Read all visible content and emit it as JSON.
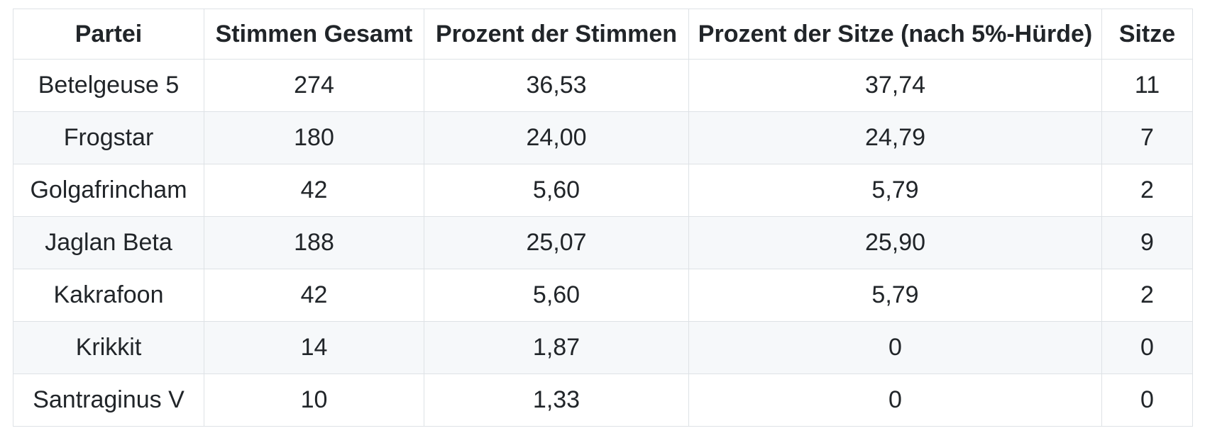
{
  "chart_data": {
    "type": "table",
    "columns": [
      "Partei",
      "Stimmen Gesamt",
      "Prozent der Stimmen",
      "Prozent der Sitze (nach 5%-Hürde)",
      "Sitze"
    ],
    "rows": [
      [
        "Betelgeuse 5",
        "274",
        "36,53",
        "37,74",
        "11"
      ],
      [
        "Frogstar",
        "180",
        "24,00",
        "24,79",
        "7"
      ],
      [
        "Golgafrincham",
        "42",
        "5,60",
        "5,79",
        "2"
      ],
      [
        "Jaglan Beta",
        "188",
        "25,07",
        "25,90",
        "9"
      ],
      [
        "Kakrafoon",
        "42",
        "5,60",
        "5,79",
        "2"
      ],
      [
        "Krikkit",
        "14",
        "1,87",
        "0",
        "0"
      ],
      [
        "Santraginus V",
        "10",
        "1,33",
        "0",
        "0"
      ]
    ],
    "layout_hints": {
      "alignment": "center",
      "zebra_striping": "even-rows",
      "header_bold": true
    }
  },
  "style": {
    "border_color": "#dee2e6",
    "stripe_color": "#f6f8fa",
    "text_color": "#212529",
    "background_color": "#ffffff"
  }
}
